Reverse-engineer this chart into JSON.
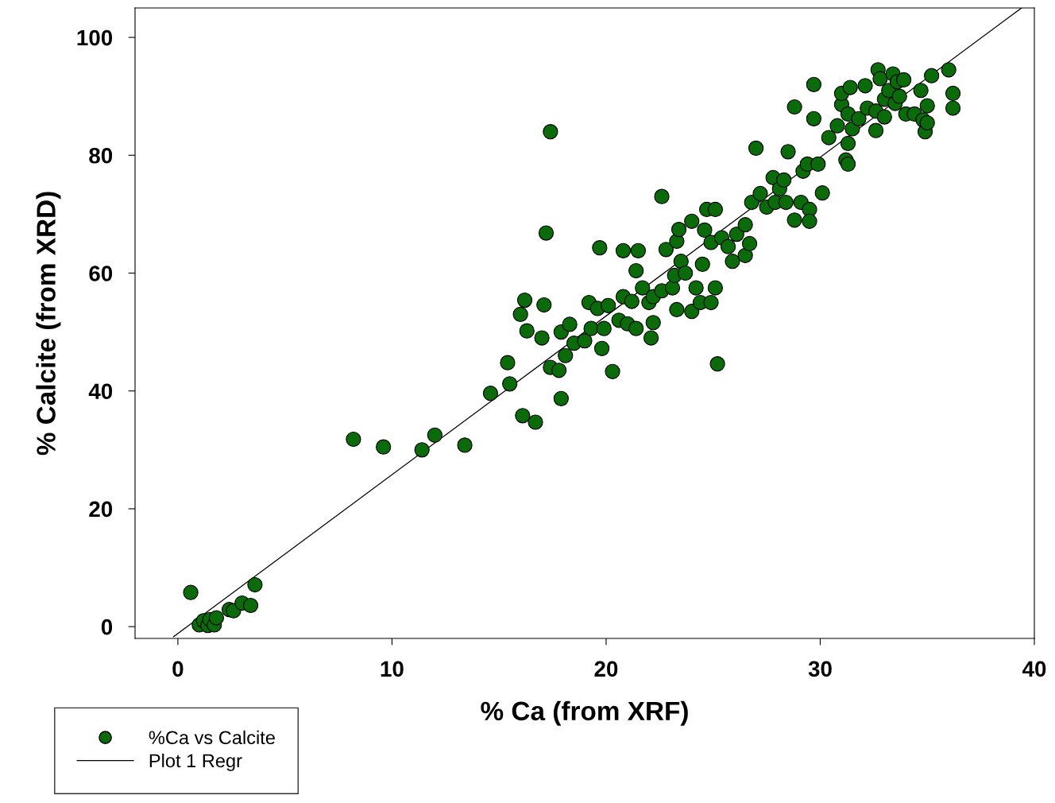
{
  "chart_data": {
    "type": "scatter",
    "xlabel": "% Ca (from XRF)",
    "ylabel": "% Calcite (from XRD)",
    "xlim": [
      -2,
      40
    ],
    "ylim": [
      -2,
      105
    ],
    "xticks": [
      0,
      10,
      20,
      30,
      40
    ],
    "yticks": [
      0,
      20,
      40,
      60,
      80,
      100
    ],
    "grid": false,
    "legend": "bottom left",
    "series": [
      {
        "name": "%Ca vs Calcite",
        "marker": "circle",
        "color": "#0b6b0b",
        "x": [
          0.6,
          1.0,
          1.2,
          1.4,
          1.5,
          1.7,
          1.8,
          2.4,
          2.6,
          3.0,
          3.4,
          3.6,
          8.2,
          9.6,
          11.4,
          12.0,
          13.4,
          14.6,
          15.4,
          15.5,
          16.1,
          16.7,
          16.0,
          16.2,
          16.3,
          17.0,
          17.1,
          17.2,
          17.4,
          17.4,
          17.8,
          17.9,
          17.9,
          18.1,
          18.3,
          18.5,
          19.0,
          19.2,
          19.3,
          19.6,
          19.7,
          19.8,
          19.9,
          20.1,
          20.3,
          20.6,
          20.8,
          21.0,
          21.2,
          21.4,
          20.8,
          21.4,
          21.5,
          21.7,
          22.0,
          22.1,
          22.2,
          22.2,
          22.6,
          22.6,
          22.8,
          23.1,
          23.2,
          23.3,
          23.3,
          23.4,
          23.5,
          23.7,
          24.0,
          24.0,
          24.2,
          24.4,
          24.5,
          24.6,
          24.7,
          24.9,
          24.9,
          25.1,
          25.1,
          25.2,
          25.4,
          25.7,
          25.9,
          26.1,
          26.5,
          26.5,
          26.7,
          26.8,
          27.0,
          27.2,
          27.5,
          27.8,
          27.9,
          28.1,
          28.3,
          28.4,
          28.5,
          28.8,
          28.8,
          29.1,
          29.2,
          29.4,
          29.5,
          29.5,
          29.7,
          29.7,
          29.9,
          30.1,
          30.4,
          30.8,
          31.0,
          31.0,
          31.2,
          31.3,
          31.3,
          31.4,
          31.3,
          31.5,
          31.8,
          32.1,
          32.2,
          32.6,
          32.6,
          32.7,
          32.8,
          33.0,
          33.0,
          33.2,
          33.4,
          33.5,
          33.6,
          33.7,
          33.9,
          34.0,
          34.4,
          34.7,
          34.8,
          34.9,
          35.0,
          35.0,
          35.2,
          36.0,
          36.2,
          36.2
        ],
        "values": [
          5.8,
          0.3,
          1.0,
          0.2,
          1.2,
          0.3,
          1.5,
          2.9,
          2.7,
          4.0,
          3.6,
          7.1,
          31.8,
          30.5,
          30.0,
          32.5,
          30.8,
          39.6,
          44.8,
          41.2,
          35.8,
          34.7,
          53.0,
          55.4,
          50.2,
          49.0,
          54.6,
          66.8,
          84.0,
          44.0,
          43.5,
          38.7,
          50.0,
          46.0,
          51.3,
          48.1,
          48.5,
          55.0,
          50.6,
          54.0,
          64.3,
          47.2,
          50.6,
          54.5,
          43.3,
          52.0,
          56.0,
          51.4,
          55.2,
          50.6,
          63.8,
          60.4,
          63.8,
          57.5,
          55.0,
          49.0,
          51.6,
          56.0,
          57.0,
          73.0,
          64.0,
          57.5,
          59.6,
          53.8,
          65.4,
          67.4,
          62.0,
          60.0,
          53.5,
          68.8,
          57.5,
          55.0,
          61.5,
          67.3,
          70.8,
          65.2,
          55.0,
          57.5,
          70.8,
          44.6,
          66.0,
          64.5,
          62.0,
          66.6,
          68.2,
          63.0,
          65.0,
          72.0,
          81.2,
          73.5,
          71.2,
          76.2,
          72.0,
          74.3,
          75.8,
          72.0,
          80.6,
          69.0,
          88.2,
          72.0,
          77.3,
          78.5,
          70.8,
          68.8,
          92.0,
          86.2,
          78.5,
          73.6,
          83.0,
          85.0,
          88.6,
          90.5,
          79.2,
          78.5,
          82.0,
          91.5,
          87.0,
          84.5,
          86.2,
          91.8,
          88.0,
          84.2,
          87.5,
          94.5,
          93.0,
          89.5,
          86.5,
          91.0,
          93.8,
          88.8,
          92.5,
          90.0,
          92.8,
          87.0,
          87.0,
          91.0,
          86.0,
          84.0,
          88.4,
          85.5,
          93.5,
          94.5,
          90.5,
          88.0
        ]
      },
      {
        "name": "Plot 1 Regr",
        "type": "line",
        "color": "#000000",
        "line_style": "solid",
        "x": [
          -0.2,
          39.4
        ],
        "values": [
          -1.7,
          105
        ]
      }
    ]
  }
}
